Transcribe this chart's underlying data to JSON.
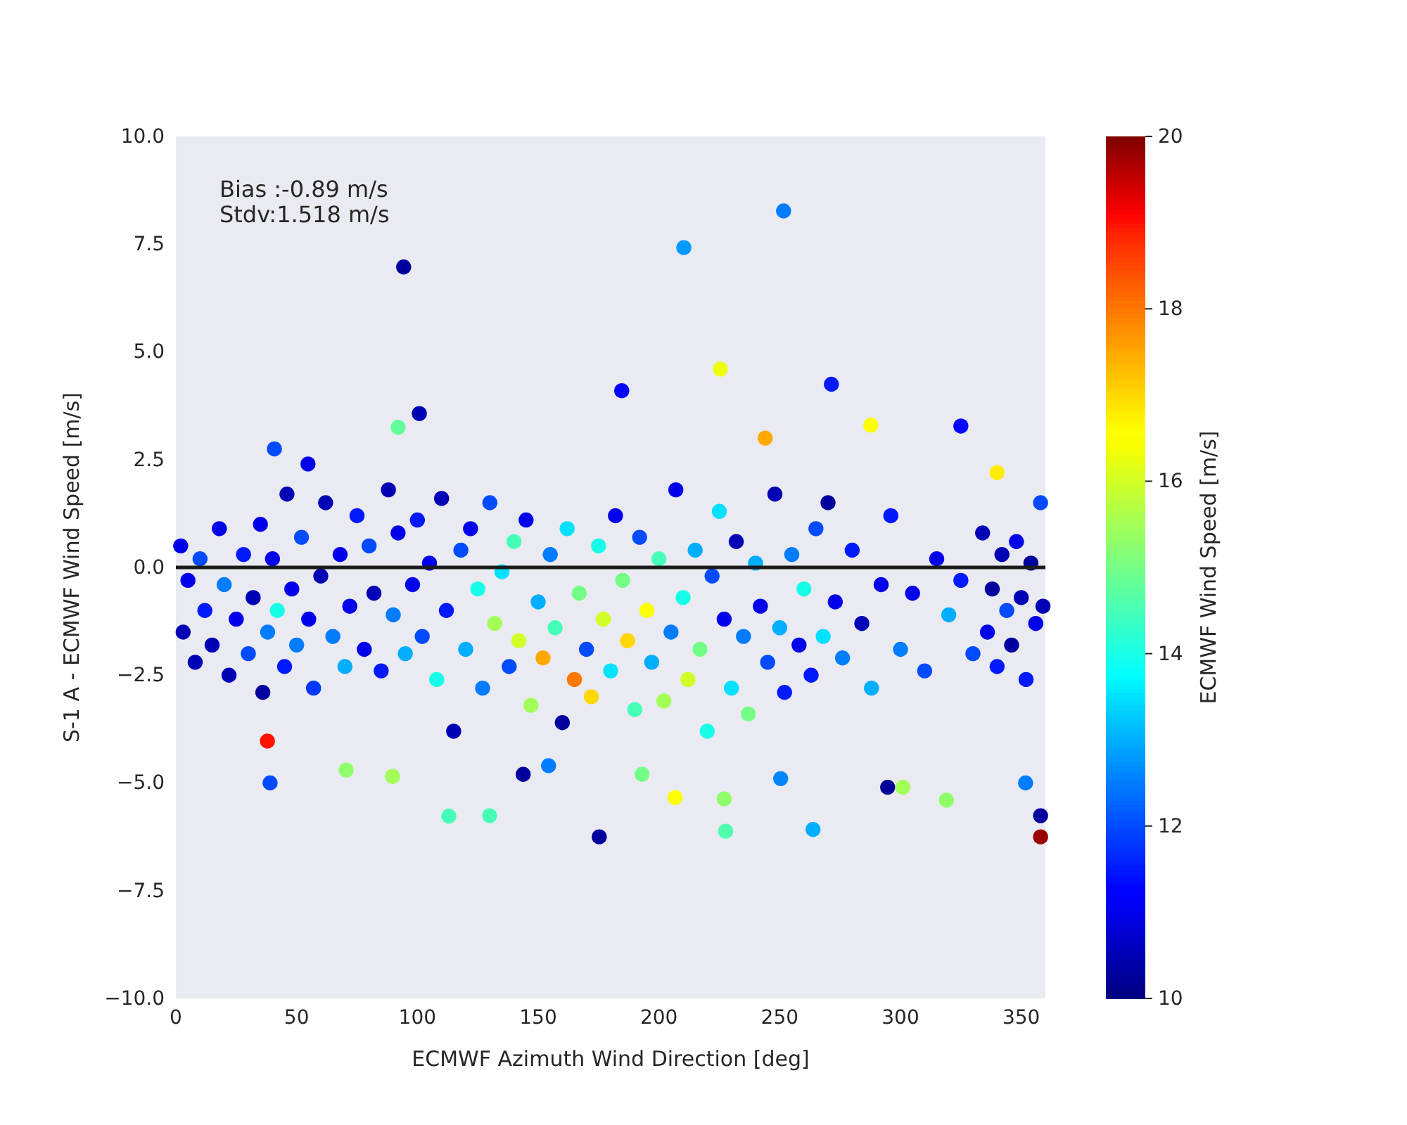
{
  "chart_data": {
    "type": "scatter",
    "xlabel": "ECMWF Azimuth Wind Direction [deg]",
    "ylabel": "S-1 A - ECMWF Wind Speed [m/s]",
    "clabel": "ECMWF Wind Speed [m/s]",
    "annotations": [
      "Bias :-0.89 m/s",
      "Stdv:1.518 m/s"
    ],
    "xlim": [
      0,
      360
    ],
    "xticks": [
      0,
      50,
      100,
      150,
      200,
      250,
      300,
      350
    ],
    "ylim": [
      -10,
      10
    ],
    "yticks": [
      {
        "value": -10,
        "label": "−10.0"
      },
      {
        "value": -7.5,
        "label": "−7.5"
      },
      {
        "value": -5,
        "label": "−5.0"
      },
      {
        "value": -2.5,
        "label": "−2.5"
      },
      {
        "value": 0,
        "label": "0.0"
      },
      {
        "value": 2.5,
        "label": "2.5"
      },
      {
        "value": 5,
        "label": "5.0"
      },
      {
        "value": 7.5,
        "label": "7.5"
      },
      {
        "value": 10,
        "label": "10.0"
      }
    ],
    "clim": [
      10,
      20
    ],
    "cticks": [
      10,
      12,
      14,
      16,
      18,
      20
    ],
    "grid": false,
    "marker": "circle",
    "ref_lines": [
      {
        "axis": "y",
        "value": 0,
        "color": "#1a1a1a"
      }
    ],
    "x": [
      2,
      3,
      5,
      8,
      10,
      12,
      15,
      18,
      20,
      22,
      25,
      28,
      30,
      32,
      35,
      36,
      38,
      40,
      42,
      45,
      46,
      48,
      50,
      52,
      55,
      57,
      60,
      62,
      65,
      68,
      70,
      72,
      75,
      78,
      80,
      82,
      85,
      88,
      90,
      92,
      95,
      98,
      100,
      102,
      105,
      108,
      110,
      112,
      115,
      118,
      120,
      122,
      125,
      127,
      130,
      132,
      135,
      138,
      140,
      142,
      145,
      147,
      150,
      152,
      155,
      157,
      160,
      162,
      165,
      167,
      170,
      172,
      175,
      177,
      180,
      182,
      185,
      187,
      190,
      192,
      195,
      197,
      200,
      202,
      205,
      207,
      210,
      212,
      215,
      217,
      220,
      222,
      225,
      227,
      230,
      232,
      235,
      237,
      240,
      242,
      245,
      248,
      250,
      252,
      255,
      258,
      260,
      263,
      265,
      268,
      270,
      273,
      276,
      280,
      284,
      288,
      292,
      296,
      300,
      305,
      310,
      315,
      320,
      325,
      330,
      334,
      336,
      338,
      340,
      342,
      344,
      346,
      348,
      350,
      352,
      354,
      356,
      358,
      359,
      94.3,
      210.3,
      251.6,
      225.4,
      271.4,
      184.6,
      100.8,
      40.8,
      54.7,
      325,
      287.7,
      340,
      92,
      244,
      37.9,
      39,
      70.5,
      89.7,
      113,
      175.3,
      143.8,
      154.3,
      129.9,
      227,
      227.6,
      263.8,
      294.7,
      319,
      301,
      358,
      358,
      206.7,
      193,
      351.8,
      250.4
    ],
    "values": [
      0.5,
      -1.5,
      -0.3,
      -2.2,
      0.2,
      -1,
      -1.8,
      0.9,
      -0.4,
      -2.5,
      -1.2,
      0.3,
      -2,
      -0.7,
      1,
      -2.9,
      -1.5,
      0.2,
      -1,
      -2.3,
      1.7,
      -0.5,
      -1.8,
      0.7,
      -1.2,
      -2.8,
      -0.2,
      1.5,
      -1.6,
      0.3,
      -2.3,
      -0.9,
      1.2,
      -1.9,
      0.5,
      -0.6,
      -2.4,
      1.8,
      -1.1,
      0.8,
      -2,
      -0.4,
      1.1,
      -1.6,
      0.1,
      -2.6,
      1.6,
      -1,
      -3.8,
      0.4,
      -1.9,
      0.9,
      -0.5,
      -2.8,
      1.5,
      -1.3,
      -0.1,
      -2.3,
      0.6,
      -1.7,
      1.1,
      -3.2,
      -0.8,
      -2.1,
      0.3,
      -1.4,
      -3.6,
      0.9,
      -2.6,
      -0.6,
      -1.9,
      -3,
      0.5,
      -1.2,
      -2.4,
      1.2,
      -0.3,
      -1.7,
      -3.3,
      0.7,
      -1,
      -2.2,
      0.2,
      -3.1,
      -1.5,
      1.8,
      -0.7,
      -2.6,
      0.4,
      -1.9,
      -3.8,
      -0.2,
      1.3,
      -1.2,
      -2.8,
      0.6,
      -1.6,
      -3.4,
      0.1,
      -0.9,
      -2.2,
      1.7,
      -1.4,
      -2.9,
      0.3,
      -1.8,
      -0.5,
      -2.5,
      0.9,
      -1.6,
      1.5,
      -0.8,
      -2.1,
      0.4,
      -1.3,
      -2.8,
      -0.4,
      1.2,
      -1.9,
      -0.6,
      -2.4,
      0.2,
      -1.1,
      -0.3,
      -2,
      0.8,
      -1.5,
      -0.5,
      -2.3,
      0.3,
      -1,
      -1.8,
      0.6,
      -0.7,
      -2.6,
      0.1,
      -1.3,
      1.5,
      -0.9,
      6.97,
      7.42,
      8.27,
      4.6,
      4.25,
      4.1,
      3.57,
      2.75,
      2.4,
      3.28,
      3.3,
      2.2,
      3.25,
      3,
      -4.03,
      -5,
      -4.7,
      -4.85,
      -5.77,
      -6.25,
      -4.8,
      -4.6,
      -5.76,
      -5.37,
      -6.12,
      -6.08,
      -5.1,
      -5.4,
      -5.1,
      -5.76,
      -6.25,
      -5.34,
      -4.8,
      -5,
      -4.9
    ],
    "cvalues": [
      11,
      10.5,
      11,
      10.5,
      12,
      11.5,
      10.5,
      11,
      12.5,
      10.5,
      11,
      11.5,
      12,
      10.5,
      11,
      10.3,
      12.5,
      11,
      14,
      11.5,
      10.5,
      11,
      12.5,
      12,
      11,
      11.8,
      10.5,
      10.5,
      12.5,
      11,
      13,
      11,
      11.5,
      11,
      12,
      10.5,
      11.5,
      10.5,
      12.5,
      11,
      13,
      11,
      11.5,
      12,
      11,
      14,
      10.5,
      11.5,
      10.5,
      12,
      13,
      11,
      14,
      12.5,
      12,
      15.5,
      13.5,
      12,
      14.5,
      16,
      11,
      15.5,
      13,
      17.5,
      12.5,
      14.5,
      10.3,
      13.5,
      18,
      15,
      12,
      17,
      14,
      16,
      13.5,
      11,
      15,
      17,
      14.5,
      12,
      16.5,
      13,
      14.5,
      15.5,
      12.5,
      11,
      14,
      16,
      13,
      15,
      14,
      12,
      13.5,
      11,
      13.5,
      10.5,
      12.5,
      15,
      13,
      11,
      12,
      10.5,
      13,
      11.5,
      12.5,
      11,
      14,
      11.5,
      12,
      13.5,
      10.3,
      11,
      12.5,
      11.5,
      10.5,
      13,
      11,
      11.5,
      12.5,
      11,
      12,
      11,
      13,
      11.5,
      12,
      10.5,
      11,
      10.3,
      11.5,
      10.5,
      12,
      10.3,
      11,
      10.5,
      11.5,
      10.3,
      11,
      12,
      10.5,
      10.3,
      12.8,
      12.5,
      16.3,
      11.5,
      11.3,
      10.5,
      12,
      11,
      11.3,
      16.5,
      16.8,
      14.8,
      17.5,
      19,
      12,
      15.3,
      15.5,
      14.5,
      10.3,
      10.3,
      12.5,
      14.5,
      15.3,
      14.6,
      13,
      10.2,
      15.3,
      15.5,
      10.3,
      19.8,
      16.5,
      15,
      12.5,
      12.6
    ]
  }
}
